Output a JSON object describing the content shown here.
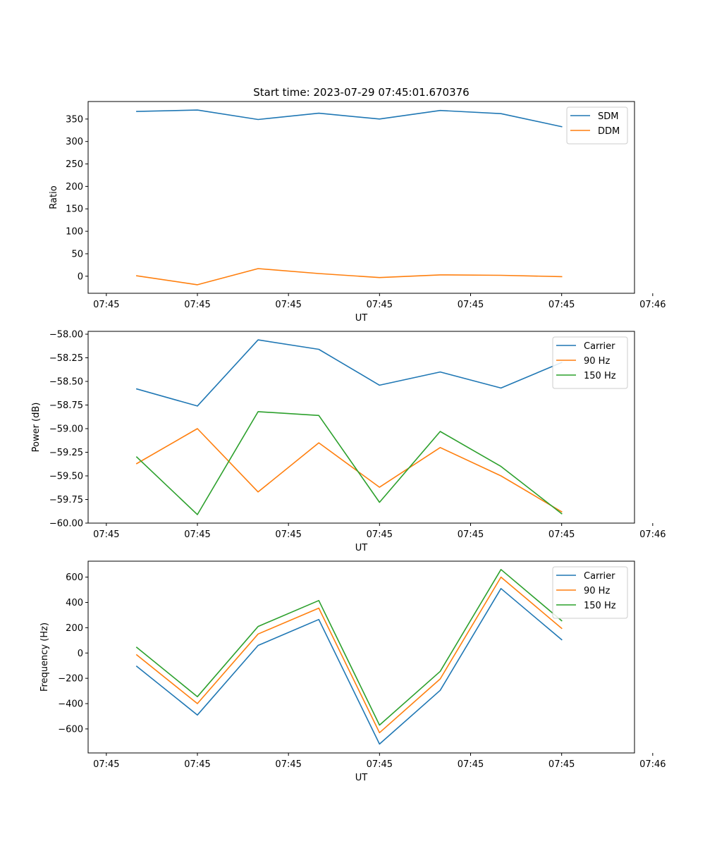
{
  "title": "Start time: 2023-07-29 07:45:01.670376",
  "chart_data": [
    {
      "type": "line",
      "xlabel": "UT",
      "ylabel": "Ratio",
      "x": [
        1,
        2,
        3,
        4,
        5,
        6,
        7,
        8
      ],
      "xlim": [
        0.2,
        9.2
      ],
      "xticks": [
        0.5,
        2,
        3.5,
        5,
        6.5,
        8,
        9.5
      ],
      "xtick_labels": [
        "07:45",
        "07:45",
        "07:45",
        "07:45",
        "07:45",
        "07:45",
        "07:46"
      ],
      "ylim": [
        -38,
        389
      ],
      "yticks": [
        0,
        50,
        100,
        150,
        200,
        250,
        300,
        350
      ],
      "ytick_labels": [
        "0",
        "50",
        "100",
        "150",
        "200",
        "250",
        "300",
        "350"
      ],
      "legend_position": "top-right",
      "series": [
        {
          "name": "SDM",
          "color": "#1f77b4",
          "values": [
            367,
            370,
            349,
            363,
            350,
            369,
            362,
            333
          ]
        },
        {
          "name": "DDM",
          "color": "#ff7f0e",
          "values": [
            1,
            -19,
            17,
            6,
            -3,
            3,
            2,
            -1
          ]
        }
      ]
    },
    {
      "type": "line",
      "xlabel": "UT",
      "ylabel": "Power (dB)",
      "x": [
        1,
        2,
        3,
        4,
        5,
        6,
        7,
        8
      ],
      "xlim": [
        0.2,
        9.2
      ],
      "xticks": [
        0.5,
        2,
        3.5,
        5,
        6.5,
        8,
        9.5
      ],
      "xtick_labels": [
        "07:45",
        "07:45",
        "07:45",
        "07:45",
        "07:45",
        "07:45",
        "07:46"
      ],
      "ylim": [
        -60.0,
        -57.97
      ],
      "yticks": [
        -60.0,
        -59.75,
        -59.5,
        -59.25,
        -59.0,
        -58.75,
        -58.5,
        -58.25,
        -58.0
      ],
      "ytick_labels": [
        "−60.00",
        "−59.75",
        "−59.50",
        "−59.25",
        "−59.00",
        "−58.75",
        "−58.50",
        "−58.25",
        "−58.00"
      ],
      "legend_position": "top-right",
      "series": [
        {
          "name": "Carrier",
          "color": "#1f77b4",
          "values": [
            -58.58,
            -58.76,
            -58.06,
            -58.16,
            -58.54,
            -58.4,
            -58.57,
            -58.3
          ]
        },
        {
          "name": "90 Hz",
          "color": "#ff7f0e",
          "values": [
            -59.37,
            -59.0,
            -59.67,
            -59.15,
            -59.62,
            -59.2,
            -59.5,
            -59.88
          ]
        },
        {
          "name": "150 Hz",
          "color": "#2ca02c",
          "values": [
            -59.3,
            -59.91,
            -58.82,
            -58.86,
            -59.78,
            -59.03,
            -59.4,
            -59.9
          ]
        }
      ]
    },
    {
      "type": "line",
      "xlabel": "UT",
      "ylabel": "Frequency (Hz)",
      "x": [
        1,
        2,
        3,
        4,
        5,
        6,
        7,
        8
      ],
      "xlim": [
        0.2,
        9.2
      ],
      "xticks": [
        0.5,
        2,
        3.5,
        5,
        6.5,
        8,
        9.5
      ],
      "xtick_labels": [
        "07:45",
        "07:45",
        "07:45",
        "07:45",
        "07:45",
        "07:45",
        "07:46"
      ],
      "ylim": [
        -790,
        726
      ],
      "yticks": [
        -600,
        -400,
        -200,
        0,
        200,
        400,
        600
      ],
      "ytick_labels": [
        "−600",
        "−400",
        "−200",
        "0",
        "200",
        "400",
        "600"
      ],
      "legend_position": "top-right",
      "series": [
        {
          "name": "Carrier",
          "color": "#1f77b4",
          "values": [
            -105,
            -490,
            60,
            265,
            -720,
            -295,
            510,
            105
          ]
        },
        {
          "name": "90 Hz",
          "color": "#ff7f0e",
          "values": [
            -15,
            -400,
            150,
            355,
            -630,
            -205,
            600,
            195
          ]
        },
        {
          "name": "150 Hz",
          "color": "#2ca02c",
          "values": [
            45,
            -345,
            210,
            415,
            -570,
            -145,
            660,
            255
          ]
        }
      ]
    }
  ]
}
